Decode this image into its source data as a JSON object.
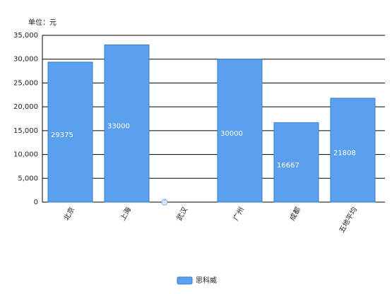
{
  "chart_data": {
    "type": "bar",
    "y_axis_label": "单位：元",
    "categories": [
      "北京",
      "上海",
      "武汉",
      "广州",
      "成都",
      "五地平均"
    ],
    "series": [
      {
        "name": "思科威",
        "color": "#5aa0ee",
        "values": [
          29375,
          33000,
          0,
          30000,
          16667,
          21808
        ]
      }
    ],
    "ylim": [
      0,
      35000
    ],
    "yticks": [
      0,
      {
        "value": 5000,
        "label": "5,000"
      },
      {
        "value": 10000,
        "label": "10,000"
      },
      {
        "value": 15000,
        "label": "15,000"
      },
      {
        "value": 20000,
        "label": "20,000"
      },
      {
        "value": 25000,
        "label": "25,000"
      },
      {
        "value": 30000,
        "label": "30,000"
      },
      {
        "value": 35000,
        "label": "35,000"
      }
    ],
    "grid": true,
    "legend": "bottom"
  }
}
